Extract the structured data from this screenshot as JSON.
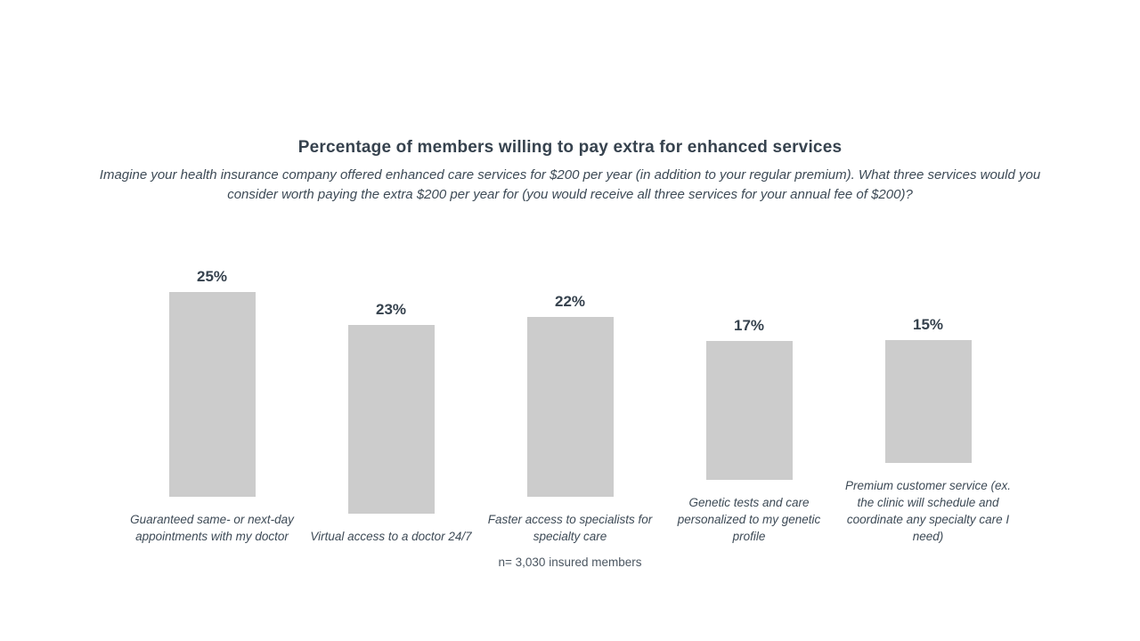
{
  "page": {
    "title": "Percentage of members willing to pay extra for enhanced services",
    "subtitle": "Imagine your health insurance company offered enhanced care services for $200 per year (in addition to your regular premium). What three services would you consider worth paying the extra $200 per year for (you would receive all three services for your annual fee of $200)?",
    "footnote": "n= 3,030 insured members"
  },
  "colors": {
    "bar_fill": "#cccccc",
    "text_dark": "#36424e"
  },
  "chart_data": {
    "type": "bar",
    "title": "Percentage of members willing to pay extra for enhanced services",
    "subtitle": "Imagine your health insurance company offered enhanced care services for $200 per year (in addition to your regular premium). What three services would you consider worth paying the extra $200 per year for (you would receive all three services for your annual fee of $200)?",
    "categories": [
      "Guaranteed same- or next-day appointments with my doctor",
      "Virtual access to a doctor 24/7",
      "Faster access to specialists for specialty care",
      "Genetic tests and care personalized to my genetic profile",
      "Premium customer service (ex. the clinic will schedule and coordinate any specialty care I need)"
    ],
    "values": [
      25,
      23,
      22,
      17,
      15
    ],
    "value_labels": [
      "25%",
      "23%",
      "22%",
      "17%",
      "15%"
    ],
    "xlabel": "",
    "ylabel": "",
    "ylim": [
      0,
      28
    ],
    "grid": false,
    "axes_visible": false,
    "legend": "none",
    "note": "n= 3,030 insured members"
  }
}
